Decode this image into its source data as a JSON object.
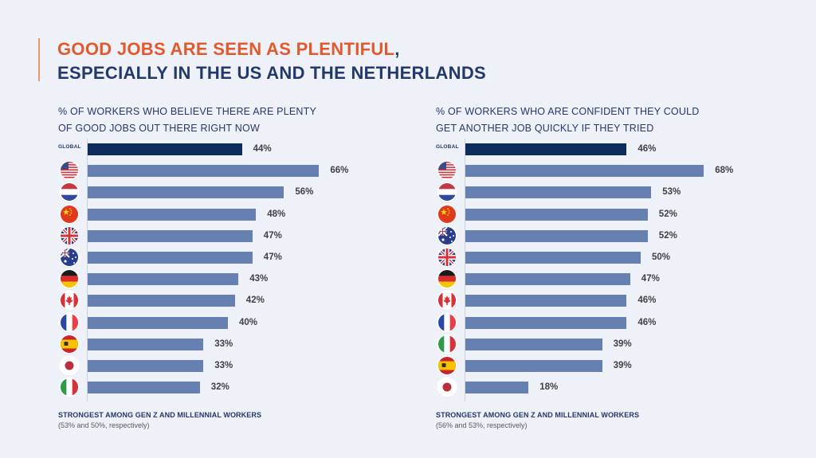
{
  "title": {
    "highlight": "GOOD JOBS ARE SEEN AS PLENTIFUL",
    "comma": ",",
    "rest": "ESPECIALLY IN THE US AND THE NETHERLANDS"
  },
  "colors": {
    "accent": "#e2592b",
    "navy": "#23386b",
    "global_bar": "#0d2d5e",
    "country_bar": "#6680b1",
    "background": "#eef1f7"
  },
  "chart_data": [
    {
      "type": "bar",
      "orientation": "horizontal",
      "title": "% OF WORKERS WHO BELIEVE THERE ARE PLENTY OF GOOD JOBS OUT THERE RIGHT NOW",
      "title_lines": [
        "% OF WORKERS WHO BELIEVE THERE ARE PLENTY",
        "OF GOOD JOBS OUT THERE RIGHT NOW"
      ],
      "categories": [
        "Global",
        "United States",
        "Netherlands",
        "China",
        "United Kingdom",
        "Australia",
        "Germany",
        "Canada",
        "France",
        "Spain",
        "Japan",
        "Italy"
      ],
      "flags": [
        "global-label",
        "us-flag",
        "netherlands-flag",
        "china-flag",
        "uk-flag",
        "australia-flag",
        "germany-flag",
        "canada-flag",
        "france-flag",
        "spain-flag",
        "japan-flag",
        "italy-flag"
      ],
      "values": [
        44,
        66,
        56,
        48,
        47,
        47,
        43,
        42,
        40,
        33,
        33,
        32
      ],
      "value_labels": [
        "44%",
        "66%",
        "56%",
        "48%",
        "47%",
        "47%",
        "43%",
        "42%",
        "40%",
        "33%",
        "33%",
        "32%"
      ],
      "global_label": "GLOBAL",
      "xlim": [
        0,
        100
      ],
      "grid": false,
      "legend": "none",
      "note_title": "STRONGEST AMONG GEN Z AND MILLENNIAL WORKERS",
      "note_detail": "(53% and 50%, respectively)"
    },
    {
      "type": "bar",
      "orientation": "horizontal",
      "title": "% OF WORKERS WHO ARE CONFIDENT THEY COULD GET ANOTHER JOB QUICKLY IF THEY TRIED",
      "title_lines": [
        "% OF WORKERS WHO ARE CONFIDENT THEY COULD",
        "GET ANOTHER JOB QUICKLY IF THEY TRIED"
      ],
      "categories": [
        "Global",
        "United States",
        "Netherlands",
        "China",
        "Australia",
        "United Kingdom",
        "Germany",
        "Canada",
        "France",
        "Italy",
        "Spain",
        "Japan"
      ],
      "flags": [
        "global-label",
        "us-flag",
        "netherlands-flag",
        "china-flag",
        "australia-flag",
        "uk-flag",
        "germany-flag",
        "canada-flag",
        "france-flag",
        "italy-flag",
        "spain-flag",
        "japan-flag"
      ],
      "values": [
        46,
        68,
        53,
        52,
        52,
        50,
        47,
        46,
        46,
        39,
        39,
        18
      ],
      "value_labels": [
        "46%",
        "68%",
        "53%",
        "52%",
        "52%",
        "50%",
        "47%",
        "46%",
        "46%",
        "39%",
        "39%",
        "18%"
      ],
      "global_label": "GLOBAL",
      "xlim": [
        0,
        100
      ],
      "grid": false,
      "legend": "none",
      "note_title": "STRONGEST AMONG GEN Z AND MILLENNIAL WORKERS",
      "note_detail": "(56% and 53%, respectively)"
    }
  ]
}
